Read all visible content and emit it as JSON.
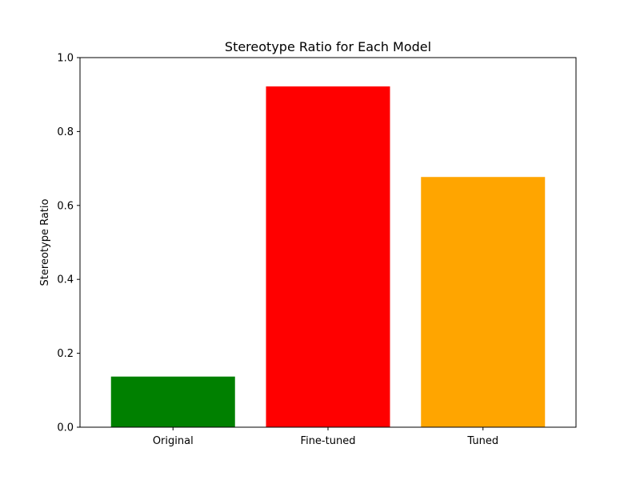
{
  "chart_data": {
    "type": "bar",
    "title": "Stereotype Ratio for Each Model",
    "xlabel": "",
    "ylabel": "Stereotype Ratio",
    "categories": [
      "Original",
      "Fine-tuned",
      "Tuned"
    ],
    "values": [
      0.137,
      0.922,
      0.677
    ],
    "colors": [
      "#008000",
      "#ff0000",
      "#ffa500"
    ],
    "ylim": [
      0,
      1.0
    ],
    "yticks": [
      "0.0",
      "0.2",
      "0.4",
      "0.6",
      "0.8",
      "1.0"
    ],
    "grid": false,
    "legend": "none"
  }
}
